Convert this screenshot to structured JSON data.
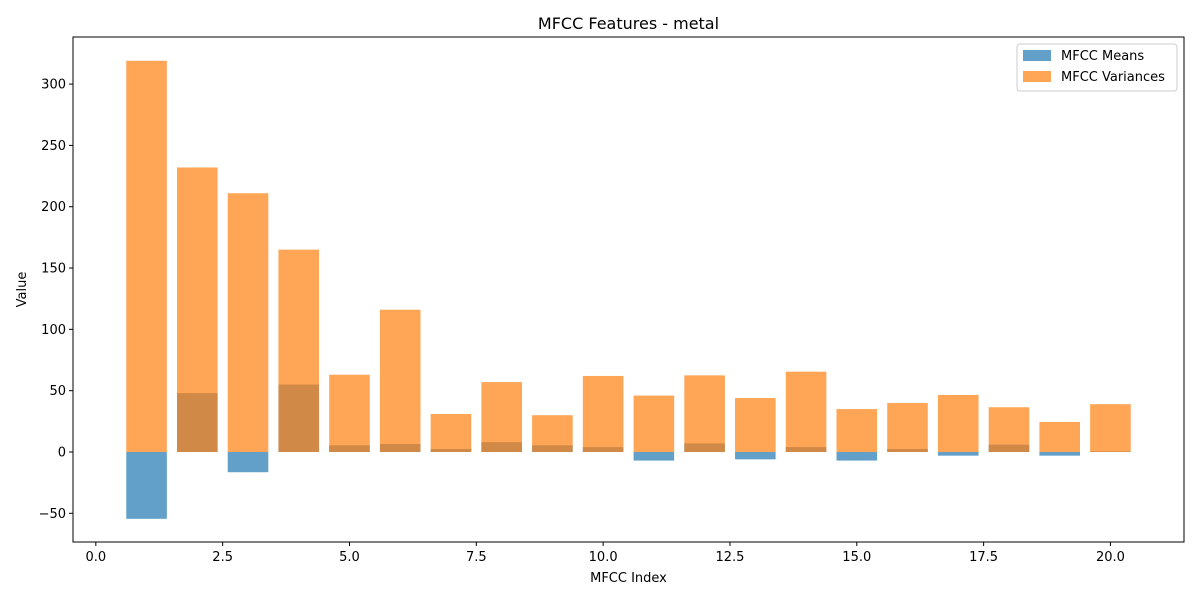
{
  "chart_data": {
    "type": "bar",
    "title": "MFCC Features - metal",
    "xlabel": "MFCC Index",
    "ylabel": "Value",
    "xlim": [
      -0.45,
      21.45
    ],
    "ylim": [
      -73.4,
      338.4
    ],
    "x_ticks": [
      0.0,
      2.5,
      5.0,
      7.5,
      10.0,
      12.5,
      15.0,
      17.5,
      20.0
    ],
    "x_tick_labels": [
      "0.0",
      "2.5",
      "5.0",
      "7.5",
      "10.0",
      "12.5",
      "15.0",
      "17.5",
      "20.0"
    ],
    "y_ticks": [
      -50,
      0,
      50,
      100,
      150,
      200,
      250,
      300
    ],
    "y_tick_labels": [
      "−50",
      "0",
      "50",
      "100",
      "150",
      "200",
      "250",
      "300"
    ],
    "x": [
      1,
      2,
      3,
      4,
      5,
      6,
      7,
      8,
      9,
      10,
      11,
      12,
      13,
      14,
      15,
      16,
      17,
      18,
      19,
      20
    ],
    "bar_width": 0.8,
    "series": [
      {
        "name": "MFCC Means",
        "color": "#1f77b4",
        "opacity": 0.7,
        "values": [
          -54.5,
          48,
          -16.5,
          55,
          5.5,
          6.5,
          2.5,
          8,
          5.5,
          4,
          -7,
          7,
          -6,
          4,
          -7,
          2.5,
          -3,
          6,
          -3,
          0.5
        ]
      },
      {
        "name": "MFCC Variances",
        "color": "#ff7f0e",
        "opacity": 0.7,
        "values": [
          319,
          232,
          211,
          165,
          63,
          116,
          31,
          57,
          30,
          62,
          46,
          62.5,
          44,
          65.5,
          35,
          40,
          46.5,
          36.5,
          24.5,
          39
        ]
      }
    ],
    "legend": {
      "location": "upper right"
    },
    "grid": false
  }
}
